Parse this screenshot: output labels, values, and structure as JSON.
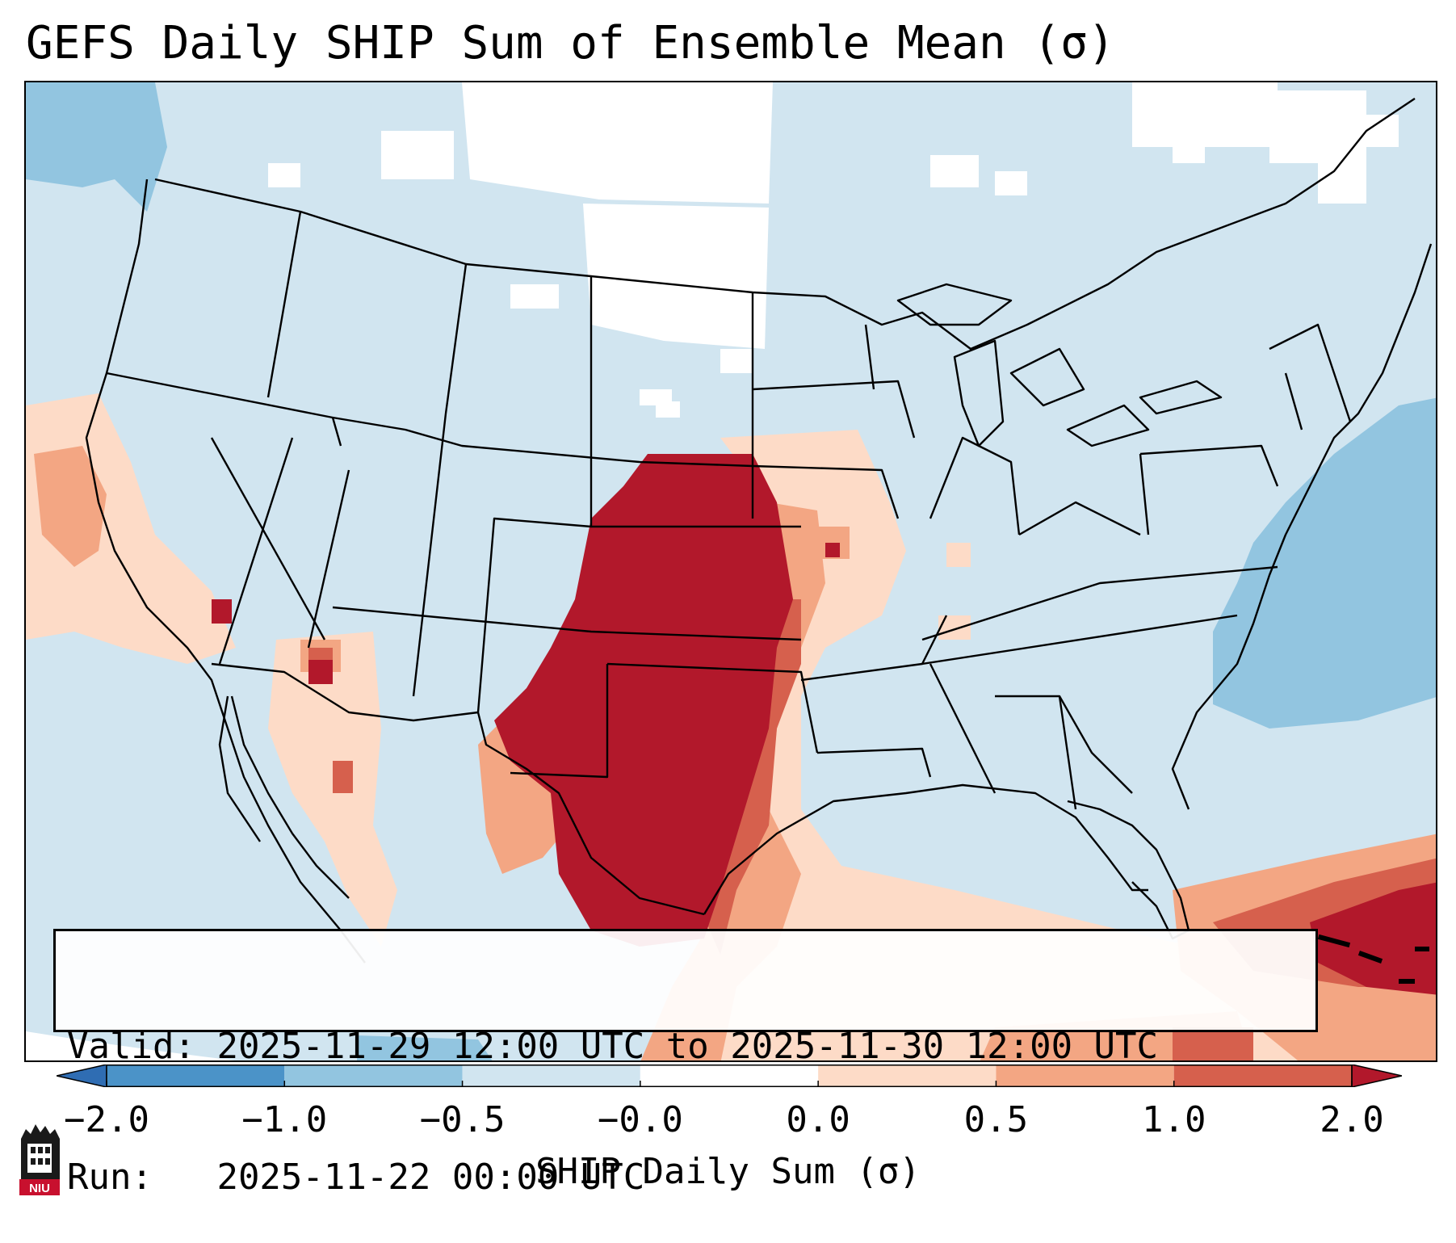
{
  "title": "GEFS Daily SHIP Sum of Ensemble Mean (σ)",
  "info": {
    "valid_label": "Valid:",
    "valid_value": "2025-11-29 12:00 UTC to 2025-11-30 12:00 UTC",
    "run_label": "Run:",
    "run_value": "2025-11-22 00:00 UTC"
  },
  "colorbar": {
    "label": "SHIP Daily Sum (σ)",
    "tick_labels": [
      "−2.0",
      "−1.0",
      "−0.5",
      "−0.0",
      "0.0",
      "0.5",
      "1.0",
      "2.0"
    ],
    "bins": [
      {
        "range": "< -2.0",
        "color": "#2f6db3"
      },
      {
        "range": "-2.0 to -1.0",
        "color": "#4b93c8"
      },
      {
        "range": "-1.0 to -0.5",
        "color": "#92c5e0"
      },
      {
        "range": "-0.5 to -0.0",
        "color": "#d1e5f0"
      },
      {
        "range": "-0.0 to 0.0",
        "color": "#ffffff"
      },
      {
        "range": "0.0 to 0.5",
        "color": "#fddbc7"
      },
      {
        "range": "0.5 to 1.0",
        "color": "#f3a683"
      },
      {
        "range": "1.0 to 2.0",
        "color": "#d6604d"
      },
      {
        "range": "> 2.0",
        "color": "#b2182b"
      }
    ]
  },
  "logo": {
    "text": "NIU",
    "name": "NIU logo"
  }
}
